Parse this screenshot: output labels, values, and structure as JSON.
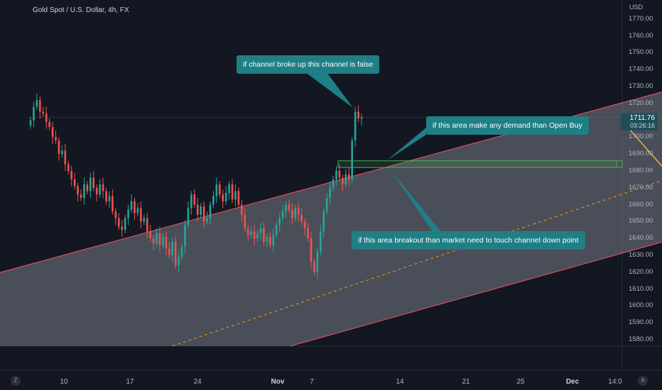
{
  "legend": {
    "title": "Gold Spot / U.S. Dollar, 4h, FX"
  },
  "price_axis": {
    "currency": "USD",
    "ticks": [
      "1770.00",
      "1760.00",
      "1750.00",
      "1740.00",
      "1730.00",
      "1720.00",
      "1710.00",
      "1700.00",
      "1690.00",
      "1680.00",
      "1670.00",
      "1660.00",
      "1650.00",
      "1640.00",
      "1630.00",
      "1620.00",
      "1610.00",
      "1600.00",
      "1590.00",
      "1580.00"
    ],
    "current_price": "1711.76",
    "countdown": "03:26:16"
  },
  "time_axis": {
    "ticks": [
      {
        "label": "10",
        "bold": false
      },
      {
        "label": "17",
        "bold": false
      },
      {
        "label": "24",
        "bold": false
      },
      {
        "label": "Nov",
        "bold": true
      },
      {
        "label": "7",
        "bold": false
      },
      {
        "label": "14",
        "bold": false
      },
      {
        "label": "21",
        "bold": false
      },
      {
        "label": "25",
        "bold": false
      },
      {
        "label": "Dec",
        "bold": true
      },
      {
        "label": "14:0",
        "bold": false
      }
    ]
  },
  "buttons": {
    "left": "Z",
    "right": "A"
  },
  "annotations": {
    "top": "if channel broke up this channel is false",
    "right": "if this area make any demand than Open Buy",
    "bottom": "if this area breakout than market need to touch channel down point"
  },
  "colors": {
    "background": "#131722",
    "up_candle": "#26a69a",
    "down_candle": "#ef5350",
    "channel_fill": "#787b86",
    "channel_border": "#f7525f",
    "midline": "#ff9800",
    "arrows": "#ffca3b",
    "demand_zone": "#4caf50",
    "callout": "#1f7f85"
  },
  "chart_data": {
    "type": "candlestick",
    "title": "Gold Spot / U.S. Dollar, 4h, FX",
    "ylabel": "USD",
    "ylim": [
      1577,
      1777
    ],
    "current_price": 1711.76,
    "price_path": [
      1710,
      1718,
      1722,
      1715,
      1714,
      1709,
      1706,
      1700,
      1698,
      1690,
      1692,
      1684,
      1680,
      1675,
      1671,
      1666,
      1664,
      1672,
      1668,
      1676,
      1670,
      1666,
      1672,
      1668,
      1662,
      1665,
      1656,
      1652,
      1647,
      1645,
      1652,
      1657,
      1662,
      1655,
      1658,
      1650,
      1652,
      1644,
      1640,
      1637,
      1643,
      1636,
      1641,
      1634,
      1630,
      1638,
      1624,
      1629,
      1635,
      1648,
      1658,
      1666,
      1660,
      1654,
      1659,
      1650,
      1652,
      1660,
      1665,
      1672,
      1666,
      1662,
      1667,
      1672,
      1663,
      1668,
      1660,
      1654,
      1646,
      1642,
      1644,
      1640,
      1643,
      1646,
      1638,
      1641,
      1636,
      1642,
      1648,
      1652,
      1656,
      1660,
      1657,
      1652,
      1658,
      1654,
      1650,
      1646,
      1640,
      1626,
      1620,
      1632,
      1644,
      1656,
      1664,
      1670,
      1675,
      1680,
      1676,
      1672,
      1678,
      1675,
      1698,
      1715,
      1711,
      1712
    ],
    "channel": {
      "upper": [
        {
          "x": "Oct 4",
          "y": 1612
        },
        {
          "x": "Nov 23",
          "y": 1763
        }
      ],
      "lower": [
        {
          "x": "Oct 4",
          "y": 1520
        },
        {
          "x": "Nov 23",
          "y": 1675
        }
      ],
      "midline": "dashed"
    },
    "demand_zone": {
      "from": 1682,
      "to": 1686
    },
    "arrows": [
      {
        "from": {
          "x": "Nov 11",
          "y": 1683
        },
        "to": {
          "x": "Nov 19",
          "y": 1770
        }
      },
      {
        "from": {
          "x": "Nov 11",
          "y": 1683
        },
        "to": {
          "x": "Nov 14",
          "y": 1649
        }
      },
      {
        "from": {
          "x": "Nov 9",
          "y": 1708
        },
        "to": {
          "x": "Nov 11",
          "y": 1683
        }
      }
    ]
  }
}
